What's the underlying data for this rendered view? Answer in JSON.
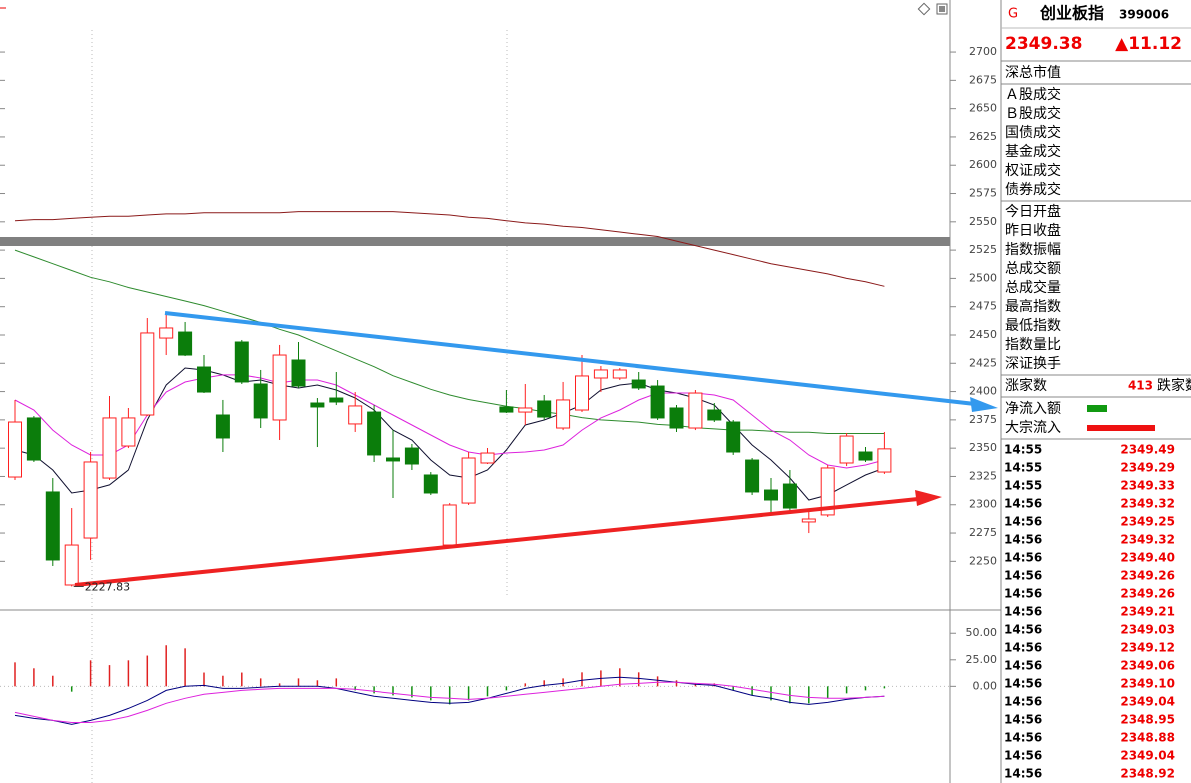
{
  "chart_data": [
    {
      "type": "candlestick",
      "up_color": "#ff2020",
      "down_color": "#0b7d0b",
      "open": [
        2324.5,
        2376.7,
        2311.3,
        2229.1,
        2270.6,
        2323.6,
        2351.9,
        2379.3,
        2447.3,
        2452.6,
        2421.7,
        2379.3,
        2443.8,
        2406.7,
        2374.9,
        2427.9,
        2389.9,
        2394.3,
        2371.4,
        2381.9,
        2341.3,
        2350.1,
        2326.3,
        2264.4,
        2301.5,
        2336.9,
        2386.4,
        2381.9,
        2391.7,
        2367.8,
        2383.7,
        2412.0,
        2412.0,
        2410.2,
        2404.9,
        2385.5,
        2367.8,
        2383.7,
        2373.1,
        2339.5,
        2313.0,
        2318.3,
        2284.8,
        2291.0,
        2336.9,
        2346.6,
        2328.9
      ],
      "high": [
        2392.6,
        2378.4,
        2323.6,
        2297.1,
        2346.6,
        2396.1,
        2385.5,
        2465.0,
        2467.7,
        2461.5,
        2432.3,
        2392.6,
        2445.6,
        2419.1,
        2441.2,
        2443.8,
        2394.3,
        2417.3,
        2399.6,
        2388.1,
        2366.0,
        2353.7,
        2328.9,
        2301.5,
        2346.6,
        2350.1,
        2401.4,
        2406.7,
        2397.0,
        2408.5,
        2432.3,
        2422.6,
        2420.8,
        2417.3,
        2410.2,
        2388.1,
        2401.4,
        2389.9,
        2374.9,
        2341.3,
        2323.6,
        2330.7,
        2293.6,
        2335.1,
        2363.4,
        2351.0,
        2364.3
      ],
      "low": [
        2321.9,
        2337.8,
        2245.9,
        2227.83,
        2251.2,
        2321.9,
        2350.1,
        2378.4,
        2432.3,
        2431.4,
        2398.7,
        2346.6,
        2406.7,
        2367.8,
        2357.2,
        2403.2,
        2351.0,
        2388.1,
        2364.3,
        2337.8,
        2306.0,
        2330.7,
        2308.6,
        2262.7,
        2299.8,
        2336.0,
        2381.1,
        2370.5,
        2374.9,
        2366.0,
        2381.9,
        2399.6,
        2410.2,
        2401.4,
        2374.9,
        2364.3,
        2366.0,
        2373.1,
        2344.0,
        2308.6,
        2293.6,
        2293.6,
        2275.0,
        2289.2,
        2334.2,
        2337.8,
        2327.2
      ],
      "close": [
        2373.1,
        2339.5,
        2251.2,
        2264.4,
        2337.8,
        2376.7,
        2376.7,
        2451.8,
        2456.2,
        2432.3,
        2399.6,
        2359.0,
        2408.5,
        2376.7,
        2432.3,
        2404.9,
        2386.4,
        2390.8,
        2387.3,
        2344.0,
        2338.7,
        2336.0,
        2310.4,
        2299.8,
        2341.3,
        2345.7,
        2381.9,
        2385.5,
        2377.5,
        2392.6,
        2413.8,
        2419.1,
        2419.1,
        2403.2,
        2376.7,
        2367.8,
        2398.7,
        2374.9,
        2346.6,
        2311.3,
        2304.2,
        2297.1,
        2287.4,
        2332.5,
        2360.7,
        2339.5,
        2349.38
      ],
      "series": [
        {
          "color": "#8b1a1a",
          "values": [
            2551,
            2552,
            2552,
            2553,
            2554,
            2555,
            2555,
            2556,
            2557,
            2557,
            2558,
            2558,
            2558,
            2558,
            2558,
            2559,
            2559,
            2559,
            2559,
            2559,
            2559,
            2558,
            2557,
            2556,
            2554,
            2553,
            2551,
            2549,
            2548,
            2546,
            2545,
            2543,
            2541,
            2539,
            2537,
            2533,
            2529,
            2525,
            2521,
            2517,
            2513,
            2510,
            2507,
            2504,
            2500,
            2497,
            2493
          ]
        },
        {
          "color": "#2e8b2e",
          "values": [
            2525,
            2519,
            2513,
            2507,
            2501,
            2497,
            2492,
            2488,
            2484,
            2480,
            2476,
            2471,
            2466,
            2461,
            2455,
            2450,
            2443,
            2436,
            2429,
            2422,
            2414,
            2408,
            2402,
            2397,
            2393,
            2390,
            2387,
            2385,
            2382,
            2380,
            2377,
            2375,
            2374,
            2373,
            2371,
            2370,
            2368,
            2367,
            2366,
            2366,
            2365,
            2364,
            2364,
            2363,
            2363,
            2363,
            2363
          ]
        },
        {
          "color": "#101030",
          "values": [
            2348.4,
            2344.0,
            2330.7,
            2310.4,
            2313.0,
            2317.5,
            2330.7,
            2374.9,
            2405.8,
            2420.8,
            2419.1,
            2414.7,
            2408.5,
            2410.2,
            2405.8,
            2403.2,
            2405.8,
            2401.4,
            2394.3,
            2383.7,
            2366.0,
            2357.2,
            2339.5,
            2326.3,
            2323.6,
            2330.7,
            2348.4,
            2370.5,
            2374.9,
            2381.1,
            2388.1,
            2401.4,
            2405.8,
            2407.6,
            2401.4,
            2398.7,
            2394.3,
            2388.1,
            2370.5,
            2352.8,
            2339.5,
            2323.6,
            2304.2,
            2308.6,
            2317.5,
            2326.3,
            2332.5
          ]
        },
        {
          "color": "#dd22dd",
          "values": [
            2392.6,
            2383.7,
            2366.0,
            2352.8,
            2344.0,
            2344.0,
            2352.8,
            2379.3,
            2399.6,
            2408.5,
            2412.0,
            2414.7,
            2414.7,
            2412.0,
            2407.6,
            2410.2,
            2410.2,
            2405.8,
            2397.0,
            2388.1,
            2379.3,
            2370.5,
            2361.6,
            2352.8,
            2346.6,
            2344.0,
            2345.7,
            2346.6,
            2348.4,
            2352.8,
            2366.0,
            2376.7,
            2383.7,
            2392.6,
            2398.7,
            2398.7,
            2398.7,
            2397.0,
            2392.6,
            2379.3,
            2366.0,
            2357.2,
            2344.0,
            2335.1,
            2332.5,
            2335.1,
            2339.5
          ]
        }
      ],
      "annotations": [
        {
          "text": "2227.83"
        }
      ],
      "ylim": [
        2207,
        2746
      ],
      "yticks": [
        2250,
        2275,
        2300,
        2325,
        2350,
        2375,
        2400,
        2425,
        2450,
        2475,
        2500,
        2525,
        2550,
        2575,
        2600,
        2625,
        2650,
        2675,
        2700
      ]
    },
    {
      "type": "macd",
      "up_color": "#e02020",
      "down_color": "#109010",
      "values": [
        22.6,
        17,
        10,
        -5,
        24.5,
        20,
        24.5,
        29,
        38.7,
        35.8,
        13,
        10,
        13,
        7.5,
        2.8,
        7.5,
        5.7,
        7.5,
        -3.8,
        -6.6,
        -8.5,
        -10.4,
        -13.2,
        -17,
        -13.2,
        -9.4,
        -3.8,
        2.8,
        5.7,
        7.5,
        13.2,
        15,
        17,
        13.2,
        9.4,
        5.7,
        2.8,
        2.8,
        -3.8,
        -8.5,
        -13.2,
        -16,
        -16,
        -11.3,
        -6.6,
        -3.8,
        -1.9
      ],
      "series": [
        {
          "color": "#000080",
          "values": [
            -27.4,
            -30.2,
            -32.1,
            -35.8,
            -32.1,
            -27.4,
            -20.8,
            -13.2,
            -3.8,
            0,
            0.9,
            -1.9,
            -1.9,
            -0.9,
            0,
            0,
            0,
            -1.9,
            -5.7,
            -9.4,
            -11.3,
            -13.2,
            -15.1,
            -16,
            -15.1,
            -11.3,
            -6.6,
            -1.9,
            0.9,
            2.8,
            5.7,
            7.5,
            8.5,
            7.5,
            5.7,
            3.8,
            1.9,
            0.9,
            -3.8,
            -8.5,
            -11.3,
            -15.1,
            -17,
            -15.1,
            -12.3,
            -10.4,
            -9.4
          ]
        },
        {
          "color": "#dd22dd",
          "values": [
            -24.5,
            -28.3,
            -32.1,
            -34,
            -34,
            -32.1,
            -28.3,
            -22.6,
            -16,
            -11.3,
            -7.5,
            -5.7,
            -3.8,
            -2.8,
            -1.9,
            -1.9,
            -1.9,
            -1.9,
            -2.8,
            -4.7,
            -6.6,
            -8.5,
            -10.4,
            -11.3,
            -12.3,
            -11.3,
            -9.4,
            -7.5,
            -5.7,
            -3.8,
            -1.9,
            0,
            1.9,
            2.8,
            3.8,
            3.8,
            2.8,
            1.9,
            0,
            -2.8,
            -5.7,
            -8.5,
            -10.4,
            -11.3,
            -11.3,
            -10.4,
            -9.4
          ]
        }
      ],
      "ylim": [
        -91,
        70
      ],
      "yticks": [
        {
          "value": 50,
          "label": "50.00"
        },
        {
          "value": 25,
          "label": "25.00"
        },
        {
          "value": 0,
          "label": "0.00"
        }
      ]
    }
  ],
  "quote_panel": {
    "flag": "G",
    "name": "创业板指",
    "code": "399006",
    "price": "2349.38",
    "change": "▲11.12",
    "group1": [
      "深总市值"
    ],
    "group2": [
      "Ａ股成交",
      "Ｂ股成交",
      "国债成交",
      "基金成交",
      "权证成交",
      "债券成交"
    ],
    "group3": [
      "今日开盘",
      "昨日收盘",
      "指数振幅",
      "总成交额",
      "总成交量",
      "最高指数",
      "最低指数",
      "指数量比",
      "深证换手"
    ],
    "advance_label": "涨家数",
    "advance_count": "413",
    "decline_label": "跌家数",
    "net_inflow_label": "净流入额",
    "block_inflow_label": "大宗流入",
    "trades": [
      [
        "14:55",
        "2349.49"
      ],
      [
        "14:55",
        "2349.29"
      ],
      [
        "14:55",
        "2349.33"
      ],
      [
        "14:56",
        "2349.32"
      ],
      [
        "14:56",
        "2349.25"
      ],
      [
        "14:56",
        "2349.32"
      ],
      [
        "14:56",
        "2349.40"
      ],
      [
        "14:56",
        "2349.26"
      ],
      [
        "14:56",
        "2349.26"
      ],
      [
        "14:56",
        "2349.21"
      ],
      [
        "14:56",
        "2349.03"
      ],
      [
        "14:56",
        "2349.12"
      ],
      [
        "14:56",
        "2349.06"
      ],
      [
        "14:56",
        "2349.10"
      ],
      [
        "14:56",
        "2349.04"
      ],
      [
        "14:56",
        "2348.95"
      ],
      [
        "14:56",
        "2348.88"
      ],
      [
        "14:56",
        "2349.04"
      ],
      [
        "14:56",
        "2348.92"
      ]
    ]
  }
}
